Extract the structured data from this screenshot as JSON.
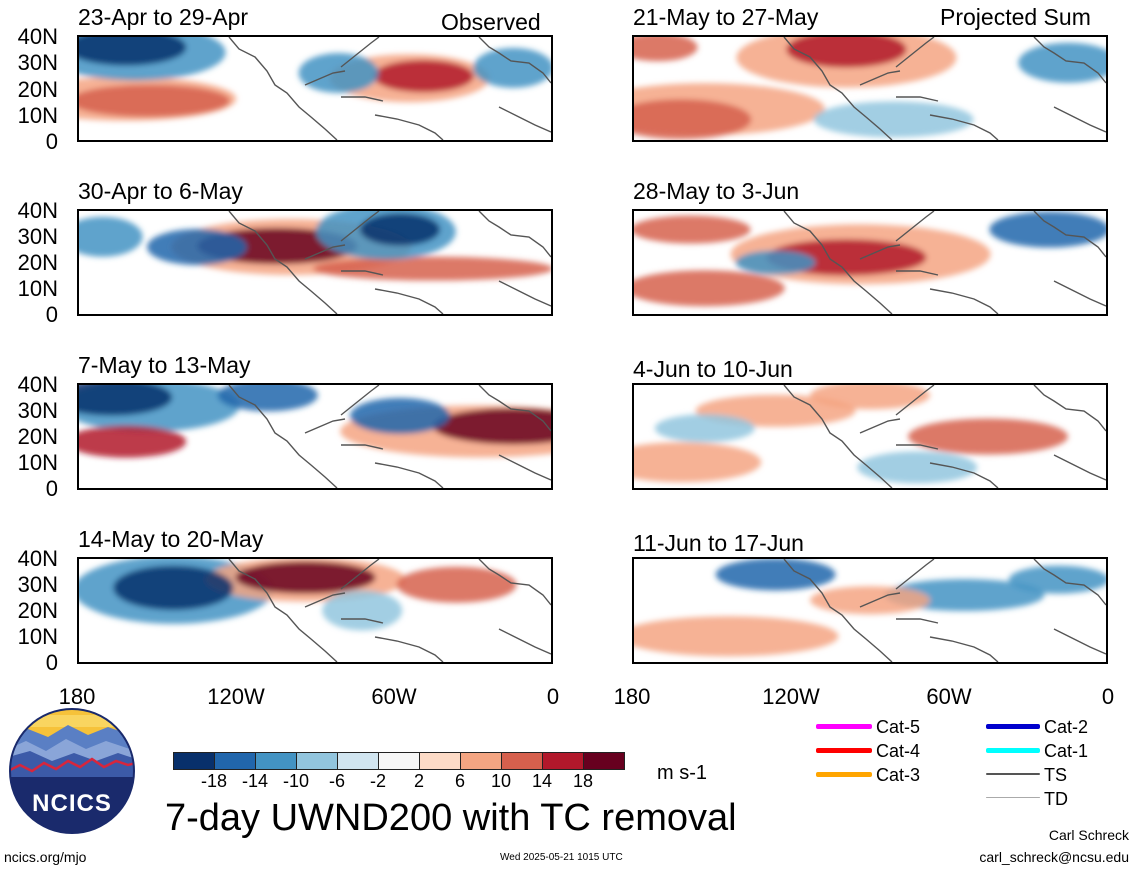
{
  "header": {
    "left_label": "Observed",
    "right_label": "Projected Sum"
  },
  "panels": [
    {
      "title": "23-Apr to 29-Apr"
    },
    {
      "title": "30-Apr to 6-May"
    },
    {
      "title": "7-May to 13-May"
    },
    {
      "title": "14-May to 20-May"
    },
    {
      "title": "21-May to 27-May"
    },
    {
      "title": "28-May to 3-Jun"
    },
    {
      "title": "4-Jun to 10-Jun"
    },
    {
      "title": "11-Jun to 17-Jun"
    }
  ],
  "lat_labels": [
    "40N",
    "30N",
    "20N",
    "10N",
    "0"
  ],
  "lon_labels": [
    "180",
    "120W",
    "60W",
    "0"
  ],
  "colorbar": {
    "colors": [
      "#08306b",
      "#2166ac",
      "#4393c3",
      "#92c5de",
      "#d1e5f0",
      "#f7f7f7",
      "#fddbc7",
      "#f4a582",
      "#d6604d",
      "#b2182b",
      "#67001f"
    ],
    "tick_labels": [
      "-18",
      "-14",
      "-10",
      "-6",
      "-2",
      "2",
      "6",
      "10",
      "14",
      "18"
    ],
    "units": "m s-1"
  },
  "main_title": "7-day UWND200 with TC removal",
  "logo_text": "NCICS",
  "legend": [
    {
      "label": "Cat-5",
      "color": "#ff00ff"
    },
    {
      "label": "Cat-4",
      "color": "#ff0000"
    },
    {
      "label": "Cat-3",
      "color": "#ffa500"
    },
    {
      "label": "Cat-2",
      "color": "#0000cd"
    },
    {
      "label": "Cat-1",
      "color": "#00ffff"
    },
    {
      "label": "TS",
      "color": "#555555"
    },
    {
      "label": "TD",
      "color": "#aaaaaa"
    }
  ],
  "footer": {
    "url": "ncics.org/mjo",
    "timestamp": "Wed 2025-05-21 1015 UTC",
    "author": "Carl Schreck",
    "email": "carl_schreck@ncsu.edu"
  }
}
